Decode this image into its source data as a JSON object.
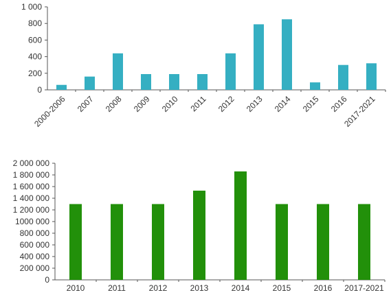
{
  "chart_data": [
    {
      "type": "bar",
      "categories": [
        "2000-2006",
        "2007",
        "2008",
        "2009",
        "2010",
        "2011",
        "2012",
        "2013",
        "2014",
        "2015",
        "2016",
        "2017-2021"
      ],
      "values": [
        60,
        160,
        440,
        190,
        190,
        190,
        440,
        790,
        850,
        90,
        300,
        320
      ],
      "ylim": [
        0,
        1000
      ],
      "yticks": [
        0,
        200,
        400,
        600,
        800,
        1000
      ],
      "ytick_labels": [
        "0",
        "200",
        "400",
        "600",
        "800",
        "1 000"
      ],
      "color": "#35afc2",
      "grid": false,
      "xtick_rotation": "rotated -45 degrees"
    },
    {
      "type": "bar",
      "categories": [
        "2010",
        "2011",
        "2012",
        "2013",
        "2014",
        "2015",
        "2016",
        "2017-2021"
      ],
      "values": [
        1300000,
        1300000,
        1300000,
        1530000,
        1860000,
        1300000,
        1300000,
        1300000
      ],
      "ylim": [
        0,
        2000000
      ],
      "yticks": [
        0,
        200000,
        400000,
        600000,
        800000,
        1000000,
        1200000,
        1400000,
        1600000,
        1800000,
        2000000
      ],
      "ytick_labels": [
        "0",
        "200 000",
        "400 000",
        "600 000",
        "800 000",
        "1000 000",
        "1 200 000",
        "1 400 000",
        "1 600 000",
        "1 800 000",
        "2 000 000"
      ],
      "color": "#22900a",
      "grid": false,
      "xtick_rotation": "horizontal"
    }
  ]
}
